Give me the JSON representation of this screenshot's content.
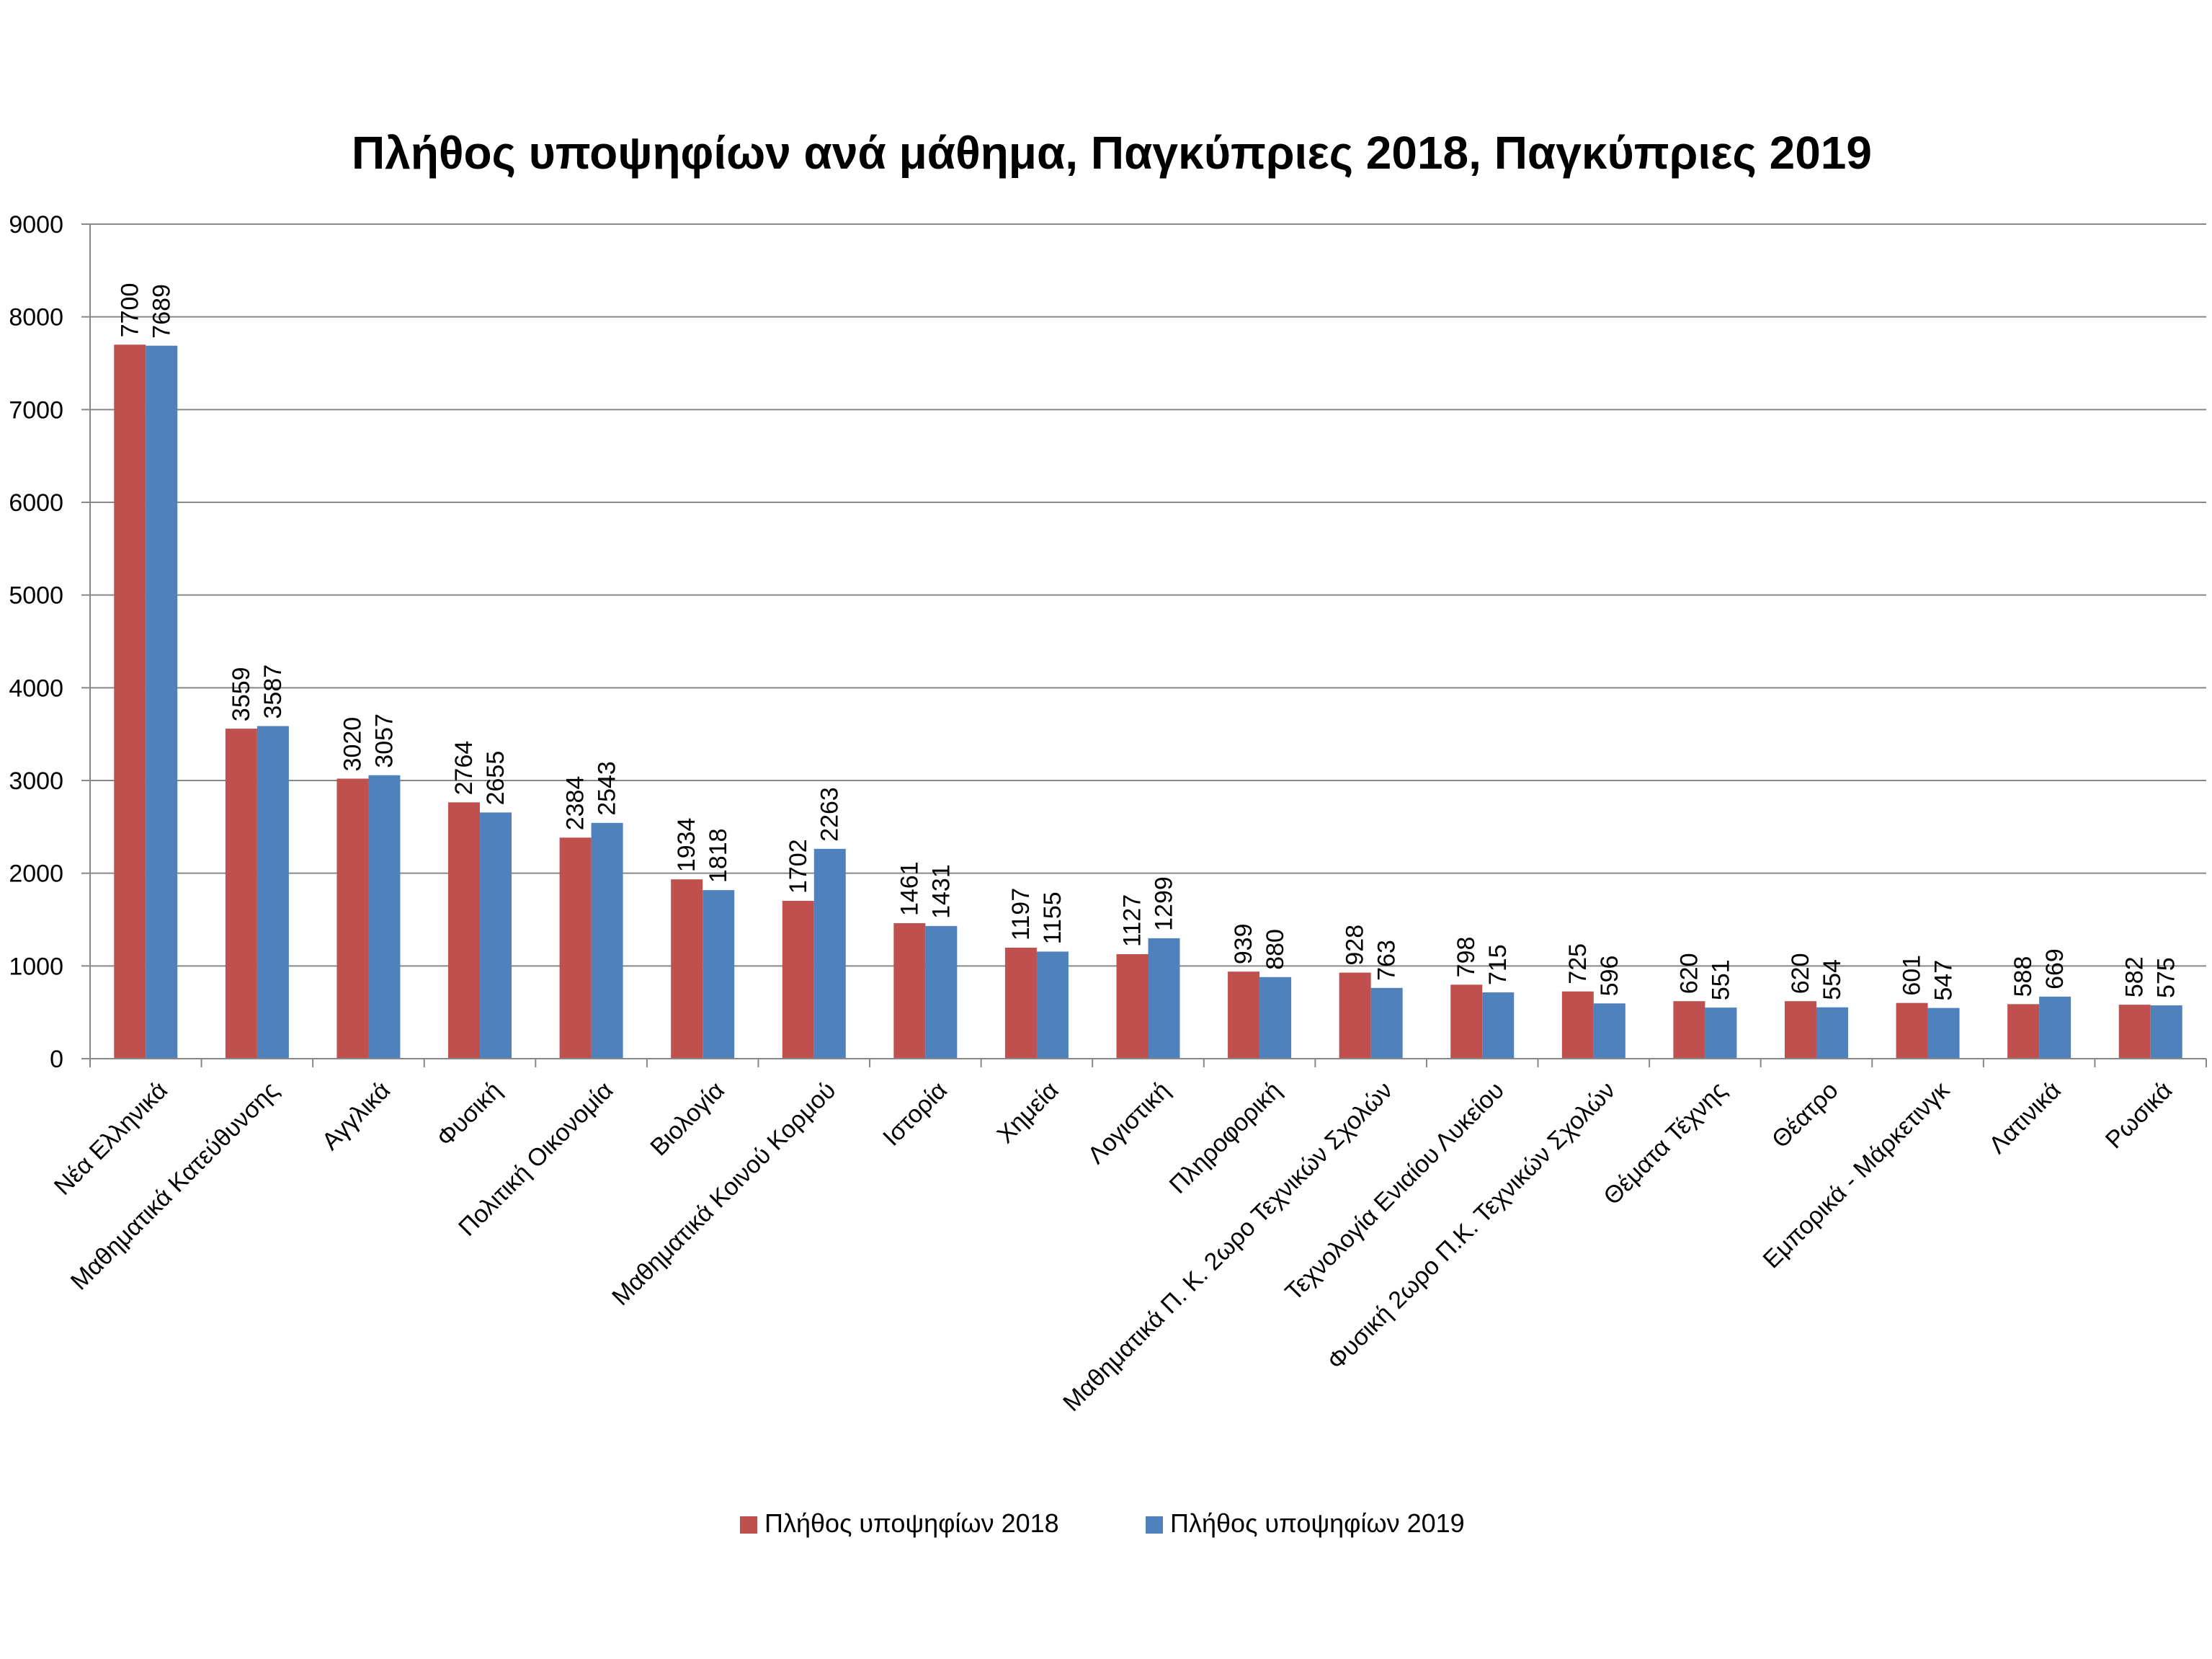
{
  "chart_data": {
    "type": "bar",
    "title": "Πλήθος υποψηφίων ανά μάθημα, Παγκύπριες 2018, Παγκύπριες 2019",
    "xlabel": "",
    "ylabel": "",
    "ylim": [
      0,
      9000
    ],
    "yticks": [
      "0",
      "1000",
      "2000",
      "3000",
      "4000",
      "5000",
      "6000",
      "7000",
      "8000",
      "9000"
    ],
    "grid": true,
    "legend_position": "bottom",
    "categories": [
      "Νέα Ελληνικά",
      "Μαθηματικά Κατεύθυνσης",
      "Αγγλικά",
      "Φυσική",
      "Πολιτική Οικονομία",
      "Βιολογία",
      "Μαθηματικά Κοινού Κορμού",
      "Ιστορία",
      "Χημεία",
      "Λογιστική",
      "Πληροφορική",
      "Μαθηματικά Π. Κ. 2ωρο Τεχνικών Σχολών",
      "Τεχνολογία Ενιαίου Λυκείου",
      "Φυσική 2ωρο Π.Κ. Τεχνικών Σχολών",
      "Θέματα Τέχνης",
      "Θέατρο",
      "Εμπορικά - Μάρκετινγκ",
      "Λατινικά",
      "Ρωσικά"
    ],
    "series": [
      {
        "name": "Πλήθος υποψηφίων 2018",
        "color": "#C0504D",
        "values": [
          7700,
          3559,
          3020,
          2764,
          2384,
          1934,
          1702,
          1461,
          1197,
          1127,
          939,
          928,
          798,
          725,
          620,
          620,
          601,
          588,
          582
        ],
        "labels": [
          "7700",
          "3559",
          "3020",
          "2764",
          "2384",
          "1934",
          "1702",
          "1461",
          "1197",
          "1127",
          "939",
          "928",
          "798",
          "725",
          "620",
          "620",
          "601",
          "588",
          "582"
        ]
      },
      {
        "name": "Πλήθος υποψηφίων 2019",
        "color": "#4F81BD",
        "values": [
          7689,
          3587,
          3057,
          2655,
          2543,
          1818,
          2263,
          1431,
          1155,
          1299,
          880,
          763,
          715,
          596,
          551,
          554,
          547,
          669,
          575
        ],
        "labels": [
          "7689",
          "3587",
          "3057",
          "2655",
          "2543",
          "1818",
          "2263",
          "1431",
          "1155",
          "1299",
          "880",
          "763",
          "715",
          "596",
          "551",
          "554",
          "547",
          "669",
          "575"
        ]
      }
    ]
  }
}
